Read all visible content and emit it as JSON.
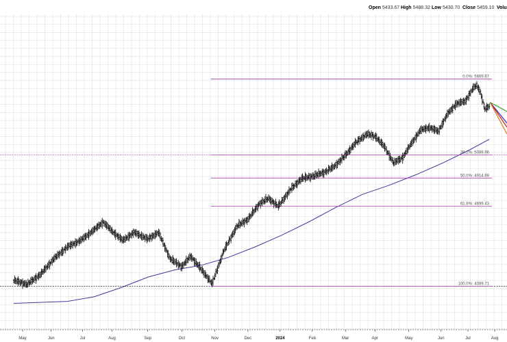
{
  "header": {
    "open_label": "Open",
    "open_value": "5433.67",
    "high_label": "High",
    "high_value": "5488.32",
    "low_label": "Low",
    "low_value": "5430.70",
    "close_label": "Close",
    "close_value": "5459.10",
    "volume_label": "Volu"
  },
  "colors": {
    "price_bars": "#000000",
    "moving_average": "#3a3a9c",
    "fib_lines": "#b040b0",
    "grid": "#d8d8d8",
    "fan_lines": [
      "#2e9e2e",
      "#2a2ad0",
      "#d02020",
      "#e07a10"
    ]
  },
  "chart_data": {
    "type": "ohlc",
    "x_axis": {
      "tick_labels": [
        "May",
        "Jun",
        "Jul",
        "Aug",
        "Sep",
        "Oct",
        "Nov",
        "Dec",
        "2024",
        "Feb",
        "Mar",
        "Apr",
        "May",
        "Jun",
        "Jul",
        "Aug"
      ],
      "bold_labels": [
        "2024"
      ]
    },
    "y_range": [
      3900,
      5750
    ],
    "grid": true,
    "price_series": [
      {
        "d": 0,
        "v": 4136
      },
      {
        "d": 15,
        "v": 4105
      },
      {
        "d": 30,
        "v": 4180
      },
      {
        "d": 45,
        "v": 4300
      },
      {
        "d": 60,
        "v": 4390
      },
      {
        "d": 75,
        "v": 4440
      },
      {
        "d": 90,
        "v": 4520
      },
      {
        "d": 100,
        "v": 4580
      },
      {
        "d": 110,
        "v": 4510
      },
      {
        "d": 122,
        "v": 4440
      },
      {
        "d": 135,
        "v": 4500
      },
      {
        "d": 150,
        "v": 4450
      },
      {
        "d": 162,
        "v": 4500
      },
      {
        "d": 175,
        "v": 4300
      },
      {
        "d": 188,
        "v": 4240
      },
      {
        "d": 198,
        "v": 4320
      },
      {
        "d": 212,
        "v": 4200
      },
      {
        "d": 222,
        "v": 4110
      },
      {
        "d": 235,
        "v": 4360
      },
      {
        "d": 250,
        "v": 4550
      },
      {
        "d": 262,
        "v": 4600
      },
      {
        "d": 275,
        "v": 4720
      },
      {
        "d": 285,
        "v": 4760
      },
      {
        "d": 296,
        "v": 4700
      },
      {
        "d": 310,
        "v": 4830
      },
      {
        "d": 322,
        "v": 4910
      },
      {
        "d": 335,
        "v": 4930
      },
      {
        "d": 348,
        "v": 4960
      },
      {
        "d": 358,
        "v": 5000
      },
      {
        "d": 370,
        "v": 5080
      },
      {
        "d": 382,
        "v": 5180
      },
      {
        "d": 395,
        "v": 5250
      },
      {
        "d": 405,
        "v": 5230
      },
      {
        "d": 415,
        "v": 5150
      },
      {
        "d": 425,
        "v": 5030
      },
      {
        "d": 435,
        "v": 5070
      },
      {
        "d": 445,
        "v": 5180
      },
      {
        "d": 455,
        "v": 5280
      },
      {
        "d": 465,
        "v": 5300
      },
      {
        "d": 475,
        "v": 5270
      },
      {
        "d": 485,
        "v": 5400
      },
      {
        "d": 495,
        "v": 5480
      },
      {
        "d": 505,
        "v": 5500
      },
      {
        "d": 514,
        "v": 5600
      },
      {
        "d": 518,
        "v": 5620
      },
      {
        "d": 522,
        "v": 5570
      },
      {
        "d": 527,
        "v": 5440
      },
      {
        "d": 532,
        "v": 5460
      }
    ],
    "moving_average": [
      {
        "d": 0,
        "v": 3960
      },
      {
        "d": 60,
        "v": 3975
      },
      {
        "d": 90,
        "v": 4010
      },
      {
        "d": 120,
        "v": 4080
      },
      {
        "d": 150,
        "v": 4160
      },
      {
        "d": 180,
        "v": 4215
      },
      {
        "d": 210,
        "v": 4250
      },
      {
        "d": 240,
        "v": 4310
      },
      {
        "d": 270,
        "v": 4390
      },
      {
        "d": 300,
        "v": 4480
      },
      {
        "d": 330,
        "v": 4580
      },
      {
        "d": 360,
        "v": 4690
      },
      {
        "d": 390,
        "v": 4790
      },
      {
        "d": 420,
        "v": 4860
      },
      {
        "d": 450,
        "v": 4940
      },
      {
        "d": 480,
        "v": 5030
      },
      {
        "d": 510,
        "v": 5130
      },
      {
        "d": 532,
        "v": 5210
      }
    ],
    "fibonacci": {
      "start_day": 228,
      "end_day": 532,
      "levels": [
        {
          "label": "0.0%: 5669.67",
          "value": 5669.67
        },
        {
          "label": "38.2%: 5089.96",
          "value": 5089.96
        },
        {
          "label": "50.0%: 4914.69",
          "value": 4914.69
        },
        {
          "label": "61.8%: 4699.43",
          "value": 4699.43
        },
        {
          "label": "100.0%: 4089.71",
          "value": 4089.71
        }
      ]
    }
  }
}
